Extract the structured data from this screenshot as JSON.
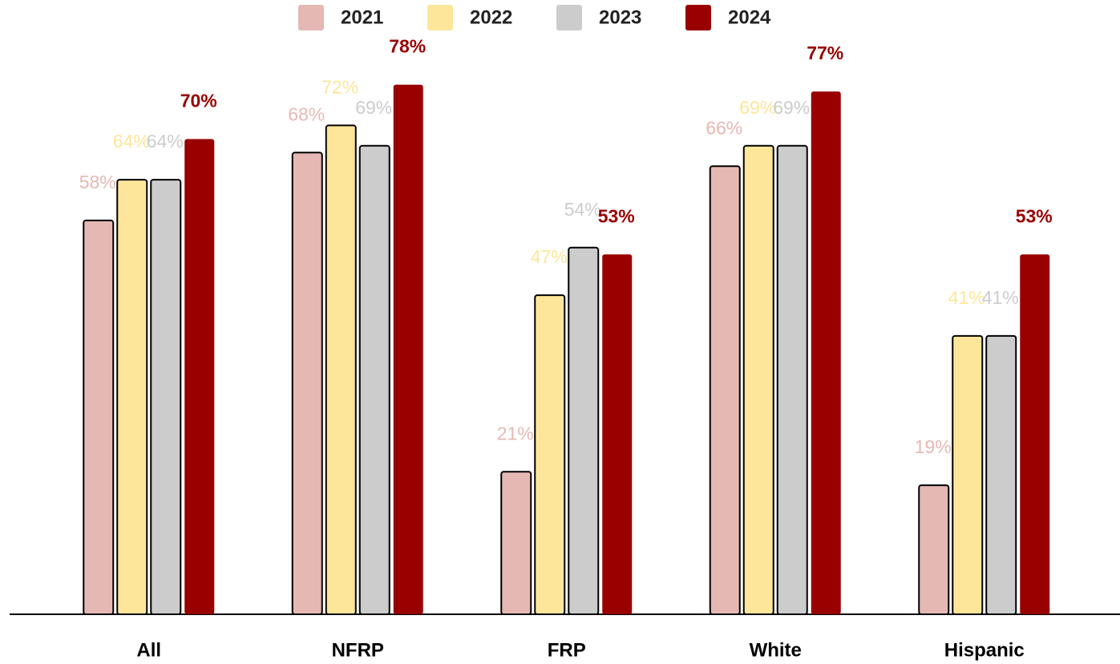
{
  "chart_data": {
    "type": "bar",
    "categories": [
      "All",
      "NFRP",
      "FRP",
      "White",
      "Hispanic"
    ],
    "series": [
      {
        "name": "2021",
        "color": "#e6b8b3",
        "values": [
          58,
          68,
          21,
          66,
          19
        ],
        "value_labels": [
          "58%",
          "68%",
          "21%",
          "66%",
          "19%"
        ]
      },
      {
        "name": "2022",
        "color": "#fde69a",
        "values": [
          64,
          72,
          47,
          69,
          41
        ],
        "value_labels": [
          "64%",
          "72%",
          "47%",
          "69%",
          "41%"
        ]
      },
      {
        "name": "2023",
        "color": "#cccccc",
        "values": [
          64,
          69,
          54,
          69,
          41
        ],
        "value_labels": [
          "64%",
          "69%",
          "54%",
          "69%",
          "41%"
        ]
      },
      {
        "name": "2024",
        "color": "#990000",
        "values": [
          70,
          78,
          53,
          77,
          53
        ],
        "value_labels": [
          "70%",
          "78%",
          "53%",
          "77%",
          "53%"
        ]
      }
    ],
    "ylim": [
      0,
      90
    ],
    "legend": "top"
  }
}
